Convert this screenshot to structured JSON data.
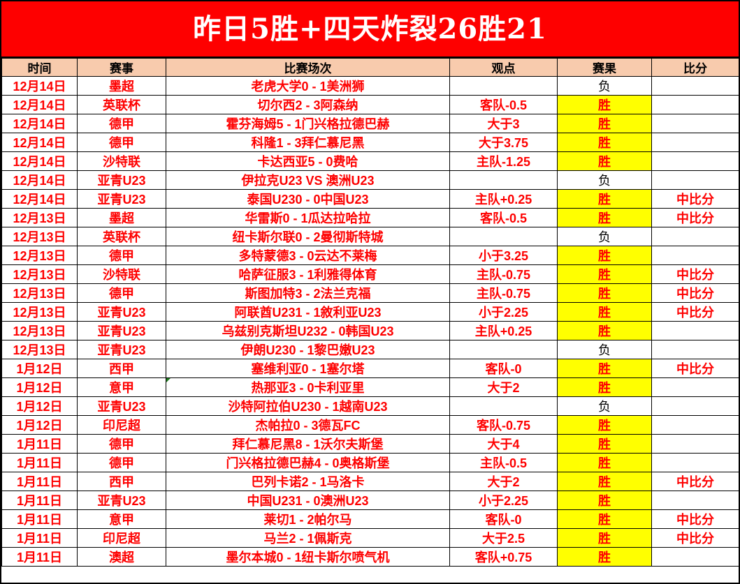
{
  "banner": {
    "title": "昨日5胜+四天炸裂26胜21"
  },
  "colors": {
    "banner_bg": "#FE0000",
    "header_bg": "#F8CBAD",
    "win_bg": "#FFFF00",
    "red_text": "#FE0000",
    "loss_text": "#000000",
    "error_flag_green": "#1E7A1E",
    "grid_border": "#000000"
  },
  "table": {
    "columns": [
      "时间",
      "赛事",
      "比赛场次",
      "观点",
      "赛果",
      "比分"
    ],
    "result_win_label": "胜",
    "result_loss_label": "负",
    "rows": [
      {
        "date": "12月14日",
        "league": "墨超",
        "match": "老虎大学0 - 1美洲狮",
        "view": "",
        "result": "负",
        "score": ""
      },
      {
        "date": "12月14日",
        "league": "英联杯",
        "match": "切尔西2 - 3阿森纳",
        "view": "客队-0.5",
        "result": "胜",
        "score": ""
      },
      {
        "date": "12月14日",
        "league": "德甲",
        "match": "霍芬海姆5 - 1门兴格拉德巴赫",
        "view": "大于3",
        "result": "胜",
        "score": ""
      },
      {
        "date": "12月14日",
        "league": "德甲",
        "match": "科隆1 - 3拜仁慕尼黑",
        "view": "大于3.75",
        "result": "胜",
        "score": ""
      },
      {
        "date": "12月14日",
        "league": "沙特联",
        "match": "卡达西亚5 - 0费哈",
        "view": "主队-1.25",
        "result": "胜",
        "score": ""
      },
      {
        "date": "12月14日",
        "league": "亚青U23",
        "match": "伊拉克U23 VS 澳洲U23",
        "view": "",
        "result": "负",
        "score": ""
      },
      {
        "date": "12月14日",
        "league": "亚青U23",
        "match": "泰国U230 - 0中国U23",
        "view": "主队+0.25",
        "result": "胜",
        "score": "中比分"
      },
      {
        "date": "12月13日",
        "league": "墨超",
        "match": "华雷斯0 - 1瓜达拉哈拉",
        "view": "客队-0.5",
        "result": "胜",
        "score": "中比分"
      },
      {
        "date": "12月13日",
        "league": "英联杯",
        "match": "纽卡斯尔联0 - 2曼彻斯特城",
        "view": "",
        "result": "负",
        "score": ""
      },
      {
        "date": "12月13日",
        "league": "德甲",
        "match": "多特蒙德3 - 0云达不莱梅",
        "view": "小于3.25",
        "result": "胜",
        "score": ""
      },
      {
        "date": "12月13日",
        "league": "沙特联",
        "match": "哈萨征服3 - 1利雅得体育",
        "view": "主队-0.75",
        "result": "胜",
        "score": "中比分"
      },
      {
        "date": "12月13日",
        "league": "德甲",
        "match": "斯图加特3 - 2法兰克福",
        "view": "主队-0.75",
        "result": "胜",
        "score": "中比分"
      },
      {
        "date": "12月13日",
        "league": "亚青U23",
        "match": "阿联酋U231 - 1敘利亚U23",
        "view": "小于2.25",
        "result": "胜",
        "score": "中比分"
      },
      {
        "date": "12月13日",
        "league": "亚青U23",
        "match": "乌兹别克斯坦U232 - 0韩国U23",
        "view": "主队+0.25",
        "result": "胜",
        "score": ""
      },
      {
        "date": "12月13日",
        "league": "亚青U23",
        "match": "伊朗U230 - 1黎巴嫩U23",
        "view": "",
        "result": "负",
        "score": ""
      },
      {
        "date": "1月12日",
        "league": "西甲",
        "match": "塞维利亚0 - 1塞尔塔",
        "view": "客队-0",
        "result": "胜",
        "score": "中比分"
      },
      {
        "date": "1月12日",
        "league": "意甲",
        "match": "热那亚3 - 0卡利亚里",
        "view": "大于2",
        "result": "胜",
        "score": "",
        "marker": true
      },
      {
        "date": "1月12日",
        "league": "亚青U23",
        "match": "沙特阿拉伯U230 - 1越南U23",
        "view": "",
        "result": "负",
        "score": ""
      },
      {
        "date": "1月12日",
        "league": "印尼超",
        "match": "杰帕拉0 - 3德瓦FC",
        "view": "客队-0.75",
        "result": "胜",
        "score": ""
      },
      {
        "date": "1月11日",
        "league": "德甲",
        "match": "拜仁慕尼黑8 - 1沃尔夫斯堡",
        "view": "大于4",
        "result": "胜",
        "score": ""
      },
      {
        "date": "1月11日",
        "league": "德甲",
        "match": "门兴格拉德巴赫4 - 0奥格斯堡",
        "view": "主队-0.5",
        "result": "胜",
        "score": ""
      },
      {
        "date": "1月11日",
        "league": "西甲",
        "match": "巴列卡诺2 - 1马洛卡",
        "view": "大于2",
        "result": "胜",
        "score": "中比分"
      },
      {
        "date": "1月11日",
        "league": "亚青U23",
        "match": "中国U231 - 0澳洲U23",
        "view": "小于2.25",
        "result": "胜",
        "score": ""
      },
      {
        "date": "1月11日",
        "league": "意甲",
        "match": "莱切1 - 2帕尔马",
        "view": "客队-0",
        "result": "胜",
        "score": "中比分"
      },
      {
        "date": "1月11日",
        "league": "印尼超",
        "match": "马兰2 - 1佩斯克",
        "view": "大于2.5",
        "result": "胜",
        "score": "中比分"
      },
      {
        "date": "1月11日",
        "league": "澳超",
        "match": "墨尔本城0 - 1纽卡斯尔喷气机",
        "view": "客队+0.75",
        "result": "胜",
        "score": ""
      }
    ]
  }
}
